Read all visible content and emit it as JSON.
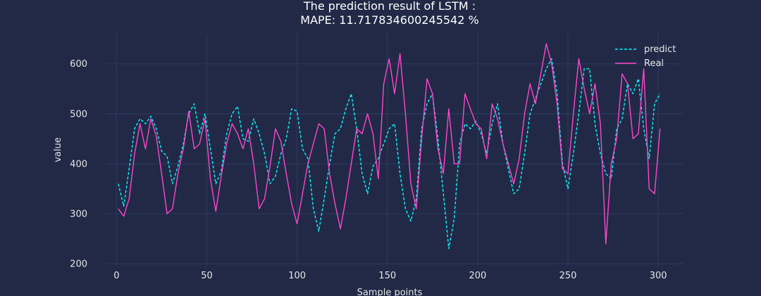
{
  "chart_data": {
    "type": "line",
    "title": "The prediction result of LSTM :",
    "subtitle": "MAPE: 11.717834600245542 %",
    "xlabel": "Sample points",
    "ylabel": "value",
    "xlim": [
      -6,
      314
    ],
    "ylim": [
      196,
      660
    ],
    "x_ticks": [
      0,
      50,
      100,
      150,
      200,
      250,
      300
    ],
    "y_ticks": [
      200,
      300,
      400,
      500,
      600
    ],
    "grid": true,
    "legend_position": "top-right",
    "background_color": "#212946",
    "grid_color": "#2a3459",
    "series": [
      {
        "name": "predict",
        "color": "#08F7FE",
        "style": "dashed",
        "x": [
          1,
          4,
          7,
          10,
          13,
          16,
          19,
          22,
          25,
          28,
          31,
          34,
          37,
          40,
          43,
          46,
          49,
          52,
          55,
          58,
          61,
          64,
          67,
          70,
          73,
          76,
          79,
          82,
          85,
          88,
          91,
          94,
          97,
          100,
          103,
          106,
          109,
          112,
          115,
          118,
          121,
          124,
          127,
          130,
          133,
          136,
          139,
          142,
          145,
          148,
          151,
          154,
          157,
          160,
          163,
          166,
          169,
          172,
          175,
          178,
          181,
          184,
          187,
          190,
          193,
          196,
          199,
          202,
          205,
          208,
          211,
          214,
          217,
          220,
          223,
          226,
          229,
          232,
          235,
          238,
          241,
          244,
          247,
          250,
          253,
          256,
          259,
          262,
          265,
          268,
          271,
          274,
          277,
          280,
          283,
          286,
          289,
          292,
          295,
          298,
          301
        ],
        "values": [
          360,
          315,
          390,
          470,
          490,
          480,
          495,
          470,
          425,
          415,
          360,
          395,
          440,
          500,
          520,
          460,
          500,
          430,
          360,
          385,
          460,
          500,
          515,
          450,
          445,
          490,
          460,
          420,
          360,
          375,
          420,
          450,
          510,
          505,
          430,
          410,
          310,
          265,
          330,
          400,
          460,
          470,
          510,
          540,
          470,
          380,
          340,
          395,
          410,
          440,
          470,
          480,
          380,
          310,
          285,
          330,
          470,
          520,
          540,
          450,
          340,
          230,
          290,
          440,
          480,
          470,
          485,
          460,
          420,
          480,
          520,
          440,
          390,
          340,
          350,
          420,
          500,
          530,
          560,
          590,
          610,
          540,
          400,
          350,
          420,
          500,
          590,
          590,
          480,
          420,
          380,
          370,
          470,
          490,
          560,
          540,
          570,
          470,
          410,
          520,
          540
        ]
      },
      {
        "name": "Real",
        "color": "#FF46CC",
        "style": "solid",
        "x": [
          1,
          4,
          7,
          10,
          13,
          16,
          19,
          22,
          25,
          28,
          31,
          34,
          37,
          40,
          43,
          46,
          49,
          52,
          55,
          58,
          61,
          64,
          67,
          70,
          73,
          76,
          79,
          82,
          85,
          88,
          91,
          94,
          97,
          100,
          103,
          106,
          109,
          112,
          115,
          118,
          121,
          124,
          127,
          130,
          133,
          136,
          139,
          142,
          145,
          148,
          151,
          154,
          157,
          160,
          163,
          166,
          169,
          172,
          175,
          178,
          181,
          184,
          187,
          190,
          193,
          196,
          199,
          202,
          205,
          208,
          211,
          214,
          217,
          220,
          223,
          226,
          229,
          232,
          235,
          238,
          241,
          244,
          247,
          250,
          253,
          256,
          259,
          262,
          265,
          268,
          271,
          274,
          277,
          280,
          283,
          286,
          289,
          292,
          295,
          298,
          301
        ],
        "values": [
          310,
          295,
          330,
          420,
          480,
          430,
          490,
          455,
          380,
          300,
          310,
          380,
          430,
          505,
          430,
          440,
          490,
          370,
          305,
          375,
          440,
          480,
          460,
          430,
          470,
          400,
          310,
          330,
          395,
          470,
          445,
          380,
          320,
          280,
          340,
          400,
          440,
          480,
          470,
          380,
          320,
          270,
          330,
          400,
          470,
          460,
          500,
          460,
          370,
          560,
          610,
          540,
          620,
          500,
          360,
          310,
          450,
          570,
          540,
          430,
          380,
          510,
          400,
          400,
          540,
          510,
          480,
          470,
          410,
          520,
          490,
          440,
          400,
          360,
          410,
          500,
          560,
          520,
          580,
          640,
          600,
          520,
          390,
          380,
          500,
          610,
          550,
          500,
          560,
          480,
          240,
          400,
          450,
          580,
          560,
          450,
          460,
          590,
          350,
          340,
          470
        ]
      }
    ]
  }
}
